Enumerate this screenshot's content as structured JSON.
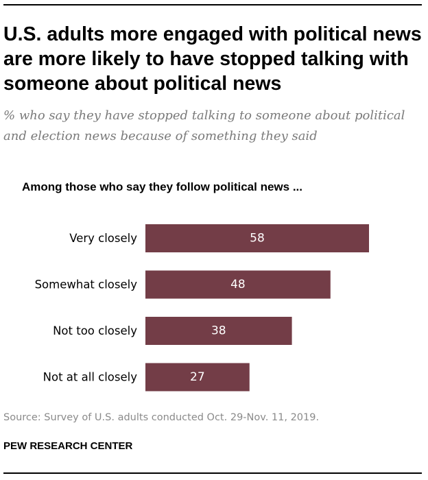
{
  "title": "U.S. adults more engaged with political news are more likely to have stopped talking with someone about political news",
  "subtitle": "% who say they have stopped talking to someone about political and election news because of something they said",
  "chart_header": "Among those who say they follow political news ...",
  "source": "Source: Survey of U.S. adults conducted Oct. 29-Nov. 11, 2019.",
  "organization": "PEW RESEARCH CENTER",
  "colors": {
    "bar": "#733d47",
    "bar_label": "#ffffff",
    "text": "#000000",
    "subtitle": "#7a7a7a",
    "source": "#8a8a8a"
  },
  "chart_data": {
    "type": "bar",
    "orientation": "horizontal",
    "title": "Among those who say they follow political news ...",
    "categories": [
      "Very closely",
      "Somewhat closely",
      "Not too closely",
      "Not at all closely"
    ],
    "values": [
      58,
      48,
      38,
      27
    ],
    "unit": "%",
    "xlabel": "",
    "ylabel": "",
    "xlim": [
      0,
      58
    ],
    "grid": false,
    "legend": "none"
  }
}
